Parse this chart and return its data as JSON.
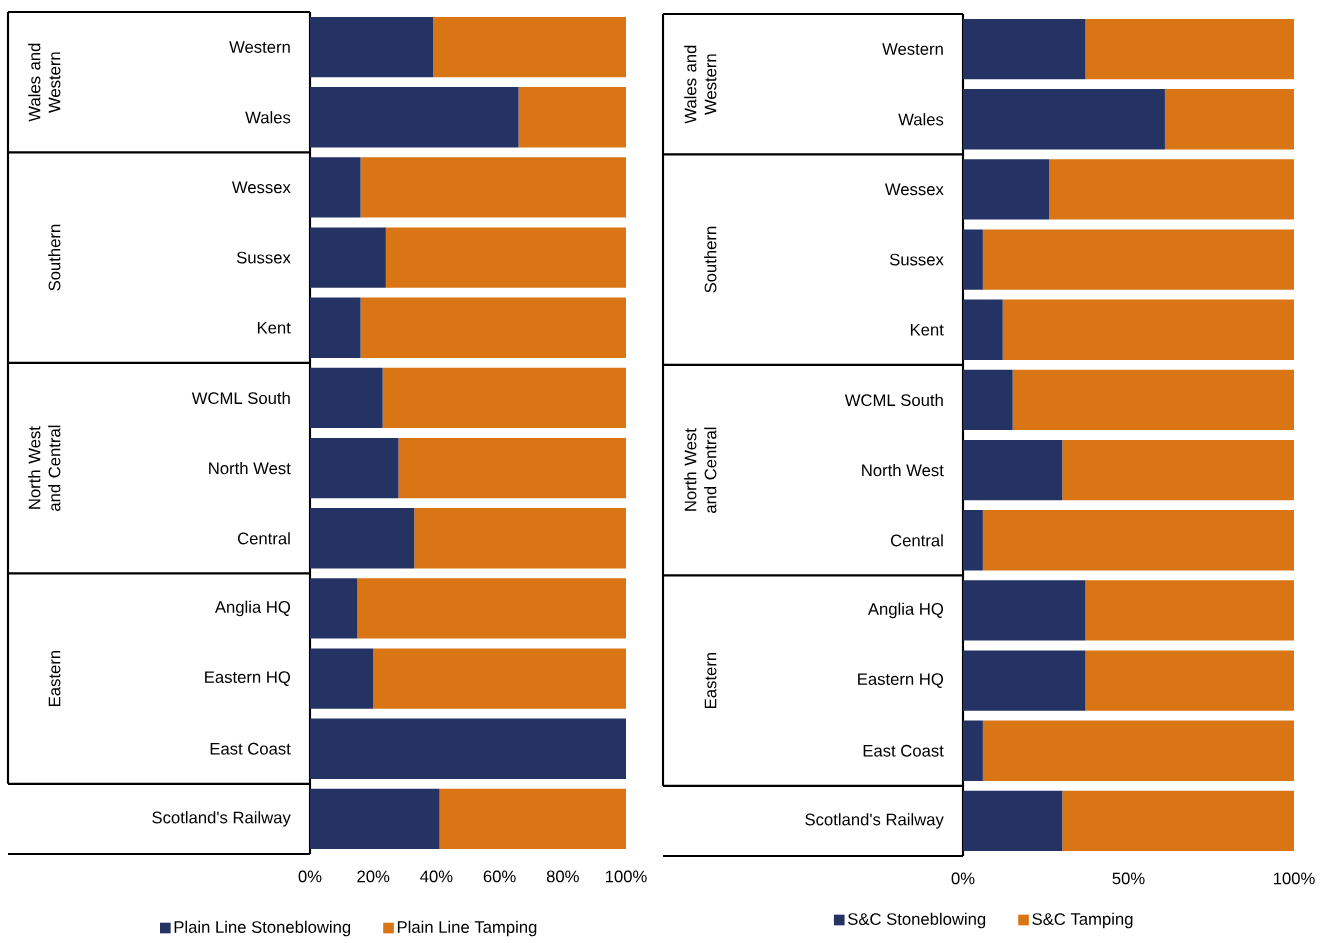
{
  "chart_data": [
    {
      "type": "bar",
      "orientation": "horizontal",
      "stacked": true,
      "legend": "bottom",
      "categories": [
        "Western",
        "Wales",
        "Wessex",
        "Sussex",
        "Kent",
        "WCML South",
        "North West",
        "Central",
        "Anglia HQ",
        "Eastern HQ",
        "East Coast",
        "Scotland's Railway"
      ],
      "series": [
        {
          "name": "Plain Line Stoneblowing",
          "color": "#253264",
          "values": [
            39,
            66,
            16,
            24,
            16,
            23,
            28,
            33,
            15,
            20,
            100,
            41
          ]
        },
        {
          "name": "Plain Line Tamping",
          "color": "#d97514",
          "values": [
            61,
            34,
            84,
            76,
            84,
            77,
            72,
            67,
            85,
            80,
            0,
            59
          ]
        }
      ],
      "xlim": [
        0,
        100
      ],
      "xticks": [
        {
          "value": 0,
          "label": "0%"
        },
        {
          "value": 20,
          "label": "20%"
        },
        {
          "value": 40,
          "label": "40%"
        },
        {
          "value": 60,
          "label": "60%"
        },
        {
          "value": 80,
          "label": "80%"
        },
        {
          "value": 100,
          "label": "100%"
        }
      ],
      "annotations": [
        "Wales and Western",
        "Southern",
        "North West and Central",
        "Eastern"
      ]
    },
    {
      "type": "bar",
      "orientation": "horizontal",
      "stacked": true,
      "legend": "bottom",
      "categories": [
        "Western",
        "Wales",
        "Wessex",
        "Sussex",
        "Kent",
        "WCML South",
        "North West",
        "Central",
        "Anglia HQ",
        "Eastern HQ",
        "East Coast",
        "Scotland's Railway"
      ],
      "series": [
        {
          "name": "S&C Stoneblowing",
          "color": "#253264",
          "values": [
            37,
            61,
            26,
            6,
            12,
            15,
            30,
            6,
            37,
            37,
            6,
            30
          ]
        },
        {
          "name": "S&C Tamping",
          "color": "#d97514",
          "values": [
            63,
            39,
            74,
            94,
            88,
            85,
            70,
            94,
            63,
            63,
            94,
            70
          ]
        }
      ],
      "xlim": [
        0,
        100
      ],
      "xticks": [
        {
          "value": 0,
          "label": "0%"
        },
        {
          "value": 50,
          "label": "50%"
        },
        {
          "value": 100,
          "label": "100%"
        }
      ],
      "annotations": [
        "Wales and Western",
        "Southern",
        "North West and Central",
        "Eastern"
      ]
    }
  ]
}
